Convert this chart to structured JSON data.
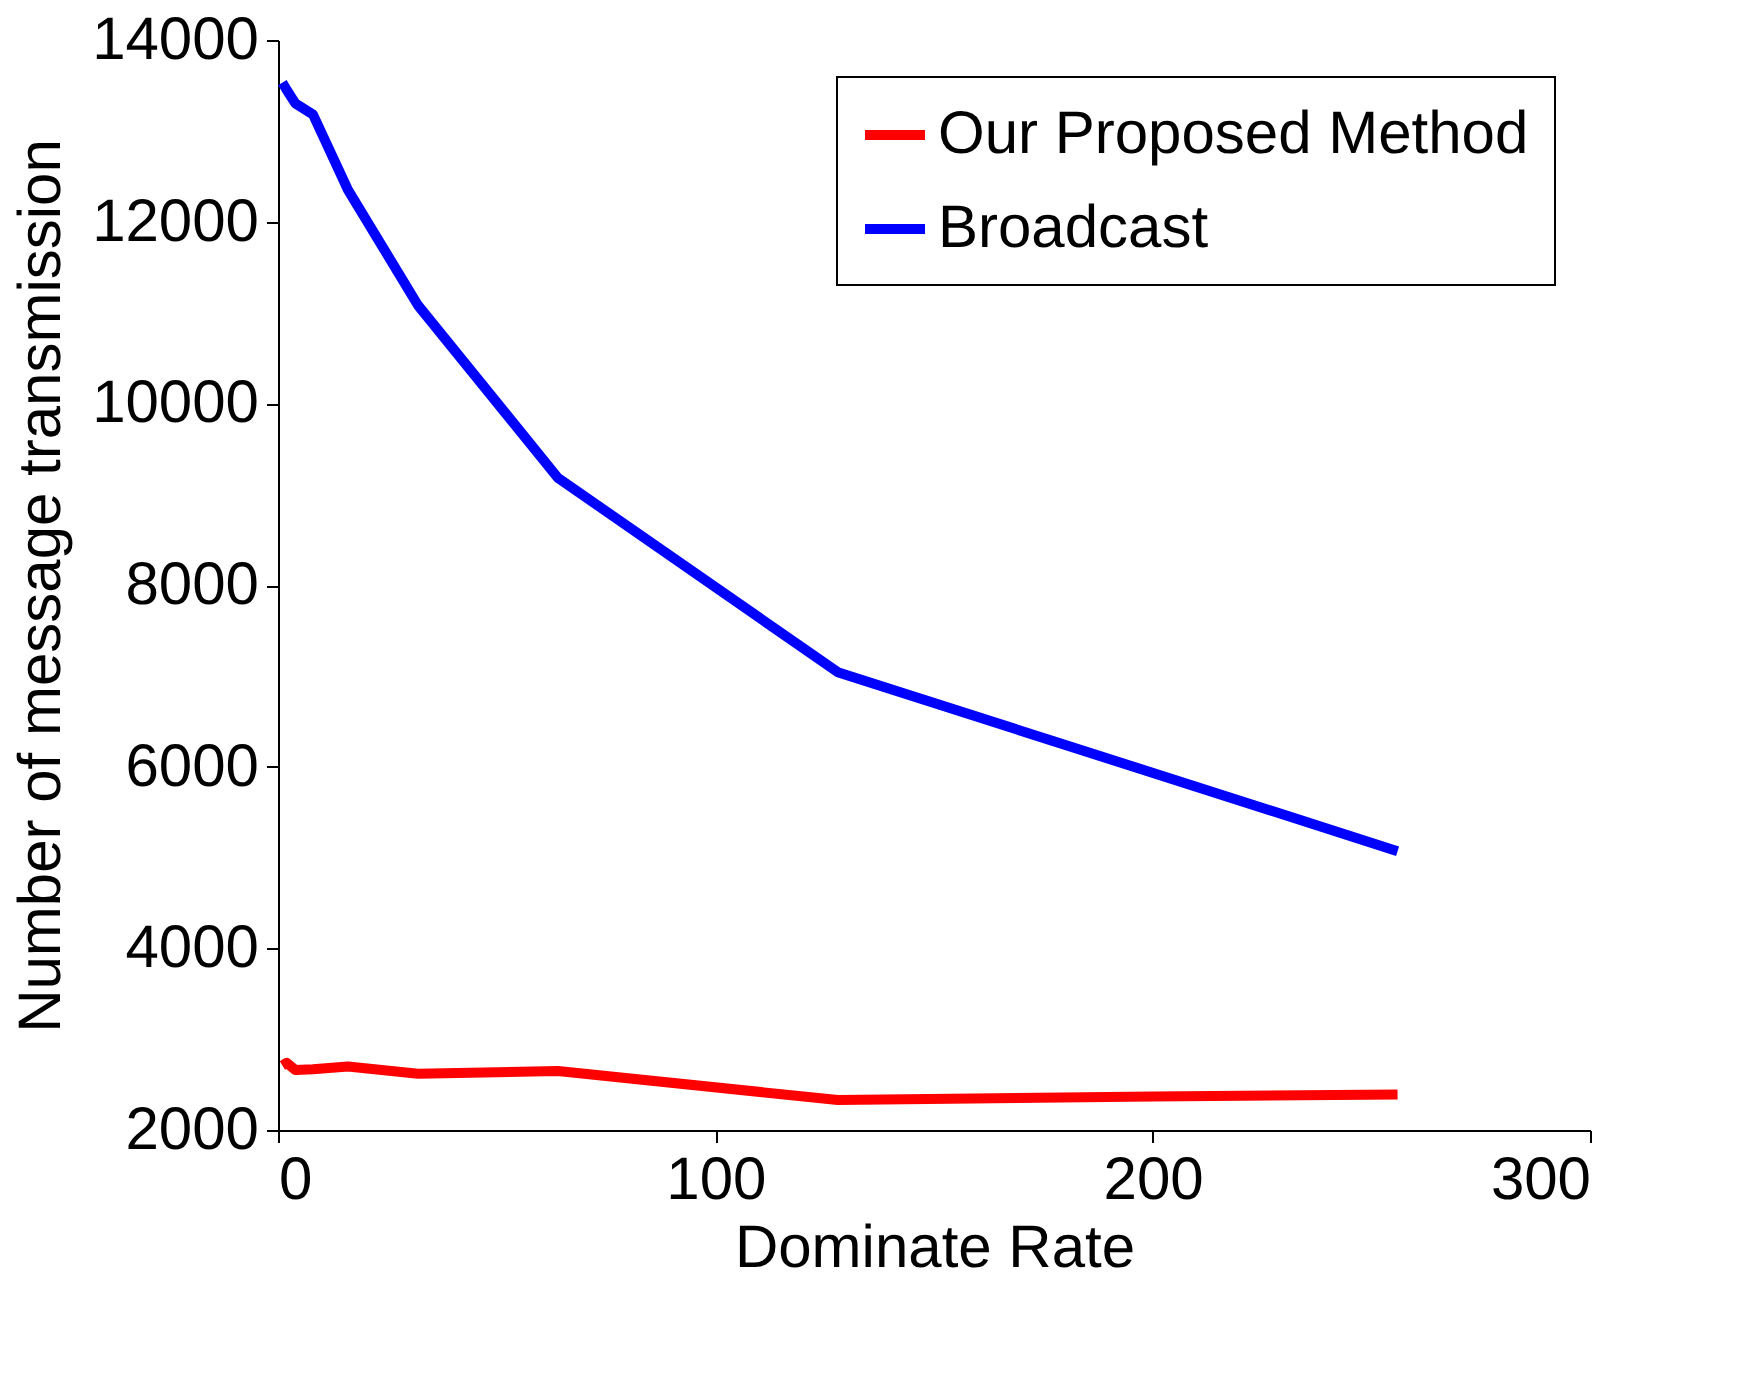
{
  "chart_data": {
    "type": "line",
    "xlabel": "Dominate Rate",
    "ylabel": "Number of message transmission",
    "xlim": [
      0,
      300
    ],
    "xticks": [
      0,
      100,
      200,
      300
    ],
    "ylim": [
      2000,
      14000
    ],
    "yticks": [
      2000,
      4000,
      6000,
      8000,
      10000,
      12000,
      14000
    ],
    "grid": false,
    "legend": "top right",
    "line_style": "solid",
    "marker": "none",
    "series": [
      {
        "name": "Our Proposed Method",
        "color": "#ff0000",
        "x": [
          1,
          2,
          4,
          8,
          16,
          32,
          64,
          128,
          200,
          256
        ],
        "values": [
          2710,
          2740,
          2660,
          2670,
          2700,
          2620,
          2650,
          2330,
          2370,
          2390
        ]
      },
      {
        "name": "Broadcast",
        "color": "#0000ff",
        "x": [
          1,
          2,
          4,
          8,
          16,
          32,
          64,
          128,
          256
        ],
        "values": [
          13530,
          13450,
          13300,
          13180,
          12350,
          11080,
          9180,
          7040,
          5070
        ]
      }
    ]
  }
}
